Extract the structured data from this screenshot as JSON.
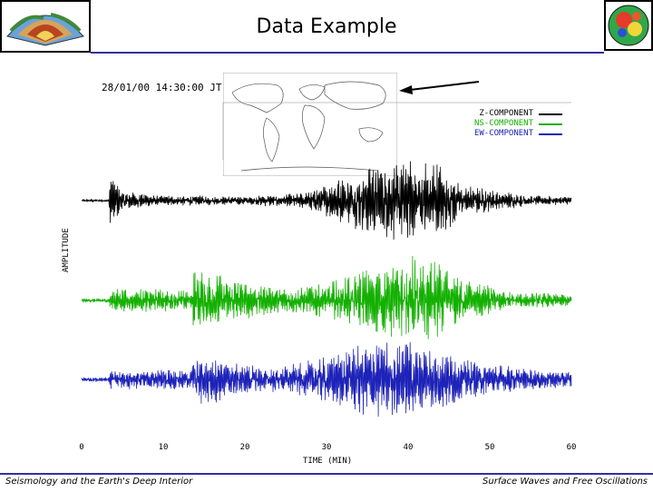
{
  "slide": {
    "title": "Data Example",
    "footer_left": "Seismology and the Earth's Deep Interior",
    "footer_right": "Surface Waves and Free Oscillations"
  },
  "record": {
    "datestamp": "28/01/00   14:30:00 JT"
  },
  "icons": [
    "earth-cutaway-logo-icon",
    "globe-tomography-logo-icon",
    "world-map-icon",
    "arrow-icon"
  ],
  "colors": {
    "z_component": "#000000",
    "ns_component": "#13b000",
    "ew_component": "#1d22b8",
    "rule": "#3030a0"
  },
  "chart_data": {
    "type": "line",
    "title": "",
    "xlabel": "TIME (MIN)",
    "ylabel": "AMPLITUDE",
    "xlim": [
      0,
      60
    ],
    "x_ticks": [
      0,
      10,
      20,
      30,
      40,
      50,
      60
    ],
    "x_tick_labels": [
      "0",
      "10",
      "20",
      "30",
      "40",
      "50",
      "60"
    ],
    "legend_position": "top-right",
    "grid": false,
    "series": [
      {
        "name": "Z-COMPONENT",
        "color": "#000000",
        "envelope": [
          {
            "t": 0.0,
            "a": 0.03
          },
          {
            "t": 3.3,
            "a": 0.03
          },
          {
            "t": 3.5,
            "a": 0.65
          },
          {
            "t": 5.0,
            "a": 0.25
          },
          {
            "t": 9.0,
            "a": 0.12
          },
          {
            "t": 14.0,
            "a": 0.12
          },
          {
            "t": 20.0,
            "a": 0.1
          },
          {
            "t": 27.0,
            "a": 0.18
          },
          {
            "t": 31.0,
            "a": 0.45
          },
          {
            "t": 36.0,
            "a": 0.85
          },
          {
            "t": 40.0,
            "a": 0.95
          },
          {
            "t": 43.0,
            "a": 1.0
          },
          {
            "t": 47.0,
            "a": 0.35
          },
          {
            "t": 55.0,
            "a": 0.12
          },
          {
            "t": 60.0,
            "a": 0.1
          }
        ]
      },
      {
        "name": "NS-COMPONENT",
        "color": "#13b000",
        "envelope": [
          {
            "t": 0.0,
            "a": 0.04
          },
          {
            "t": 3.3,
            "a": 0.04
          },
          {
            "t": 3.5,
            "a": 0.25
          },
          {
            "t": 13.5,
            "a": 0.22
          },
          {
            "t": 13.7,
            "a": 0.75
          },
          {
            "t": 18.0,
            "a": 0.45
          },
          {
            "t": 24.0,
            "a": 0.25
          },
          {
            "t": 30.0,
            "a": 0.35
          },
          {
            "t": 34.0,
            "a": 0.6
          },
          {
            "t": 38.0,
            "a": 0.8
          },
          {
            "t": 42.0,
            "a": 1.0
          },
          {
            "t": 46.0,
            "a": 0.5
          },
          {
            "t": 52.0,
            "a": 0.2
          },
          {
            "t": 60.0,
            "a": 0.12
          }
        ]
      },
      {
        "name": "EW-COMPONENT",
        "color": "#1d22b8",
        "envelope": [
          {
            "t": 0.0,
            "a": 0.06
          },
          {
            "t": 3.3,
            "a": 0.06
          },
          {
            "t": 3.5,
            "a": 0.25
          },
          {
            "t": 13.5,
            "a": 0.25
          },
          {
            "t": 13.7,
            "a": 0.75
          },
          {
            "t": 18.0,
            "a": 0.45
          },
          {
            "t": 24.0,
            "a": 0.3
          },
          {
            "t": 30.0,
            "a": 0.55
          },
          {
            "t": 35.0,
            "a": 0.9
          },
          {
            "t": 39.0,
            "a": 1.0
          },
          {
            "t": 43.0,
            "a": 0.85
          },
          {
            "t": 48.0,
            "a": 0.45
          },
          {
            "t": 55.0,
            "a": 0.25
          },
          {
            "t": 60.0,
            "a": 0.2
          }
        ]
      }
    ],
    "annotations": []
  }
}
